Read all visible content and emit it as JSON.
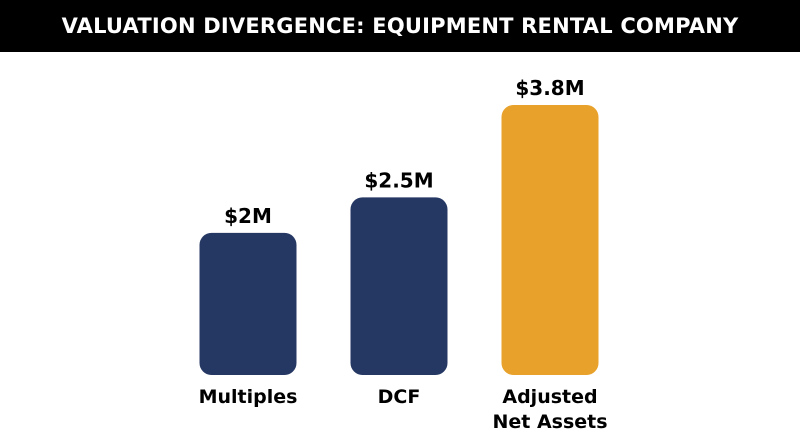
{
  "chart_data": {
    "type": "bar",
    "title": "VALUATION DIVERGENCE: EQUIPMENT RENTAL COMPANY",
    "categories": [
      [
        "Multiples"
      ],
      [
        "DCF"
      ],
      [
        "Adjusted",
        "Net Assets"
      ]
    ],
    "values": [
      2.0,
      2.5,
      3.8
    ],
    "value_labels": [
      "$2M",
      "$2.5M",
      "$3.8M"
    ],
    "unit": "$M",
    "colors": [
      "#253763",
      "#253763",
      "#E8A12A"
    ],
    "xlabel": "",
    "ylabel": "",
    "ylim": [
      0,
      3.8
    ],
    "grid": false,
    "legend": "none"
  }
}
